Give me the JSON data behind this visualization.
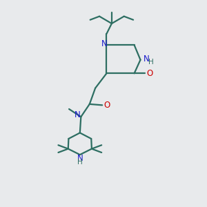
{
  "bg_color": "#e8eaec",
  "bond_color": "#2d6e62",
  "N_color": "#1a1acc",
  "O_color": "#cc0000",
  "linewidth": 1.6,
  "figsize": [
    3.0,
    3.0
  ],
  "dpi": 100,
  "xlim": [
    0,
    10
  ],
  "ylim": [
    0,
    10
  ],
  "font_size_N": 8.5,
  "font_size_H": 7.5,
  "font_size_O": 8.5
}
